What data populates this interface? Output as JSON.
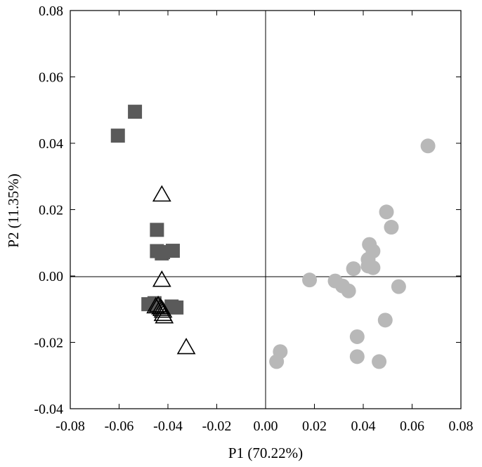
{
  "chart_data": {
    "type": "scatter",
    "title": "",
    "xlabel": "P1 (70.22%)",
    "ylabel": "P2 (11.35%)",
    "xlim": [
      -0.08,
      0.08
    ],
    "ylim": [
      -0.04,
      0.08
    ],
    "xticks": [
      -0.08,
      -0.06,
      -0.04,
      -0.02,
      0.0,
      0.02,
      0.04,
      0.06,
      0.08
    ],
    "yticks": [
      -0.04,
      -0.02,
      0.0,
      0.02,
      0.04,
      0.06,
      0.08
    ],
    "xtick_labels": [
      "-0.08",
      "-0.06",
      "-0.04",
      "-0.02",
      "0.00",
      "0.02",
      "0.04",
      "0.06",
      "0.08"
    ],
    "ytick_labels": [
      "-0.04",
      "-0.02",
      "0.00",
      "0.02",
      "0.04",
      "0.06",
      "0.08"
    ],
    "zero_lines": true,
    "grid": false,
    "legend": "none",
    "series": [
      {
        "marker": "square",
        "color": "#5a5a5a",
        "points": [
          [
            -0.0535,
            0.0495
          ],
          [
            -0.0605,
            0.0423
          ],
          [
            -0.0445,
            0.0139
          ],
          [
            -0.0445,
            0.0075
          ],
          [
            -0.042,
            0.0072
          ],
          [
            -0.038,
            0.0076
          ],
          [
            -0.0425,
            0.0068
          ],
          [
            -0.048,
            -0.0085
          ],
          [
            -0.0455,
            -0.0082
          ],
          [
            -0.0385,
            -0.0092
          ],
          [
            -0.0365,
            -0.0095
          ]
        ]
      },
      {
        "marker": "open-triangle",
        "color": "#000000",
        "points": [
          [
            -0.0425,
            0.0245
          ],
          [
            -0.0425,
            -0.0012
          ],
          [
            -0.044,
            -0.0088
          ],
          [
            -0.043,
            -0.0095
          ],
          [
            -0.0425,
            -0.01
          ],
          [
            -0.042,
            -0.0105
          ],
          [
            -0.042,
            -0.0115
          ],
          [
            -0.0415,
            -0.0122
          ],
          [
            -0.045,
            -0.0092
          ],
          [
            -0.0325,
            -0.0215
          ]
        ]
      },
      {
        "marker": "circle",
        "color": "#b8b8b8",
        "points": [
          [
            0.0665,
            0.0392
          ],
          [
            0.0495,
            0.0193
          ],
          [
            0.0515,
            0.0147
          ],
          [
            0.0425,
            0.0095
          ],
          [
            0.044,
            0.0075
          ],
          [
            0.042,
            0.005
          ],
          [
            0.036,
            0.0022
          ],
          [
            0.042,
            0.003
          ],
          [
            0.044,
            0.0025
          ],
          [
            0.018,
            -0.0012
          ],
          [
            0.0285,
            -0.0015
          ],
          [
            0.0315,
            -0.003
          ],
          [
            0.034,
            -0.0045
          ],
          [
            0.0545,
            -0.0032
          ],
          [
            0.049,
            -0.0133
          ],
          [
            0.0375,
            -0.0183
          ],
          [
            0.0375,
            -0.0243
          ],
          [
            0.0465,
            -0.0258
          ],
          [
            0.006,
            -0.0228
          ],
          [
            0.0045,
            -0.0258
          ]
        ]
      }
    ]
  }
}
